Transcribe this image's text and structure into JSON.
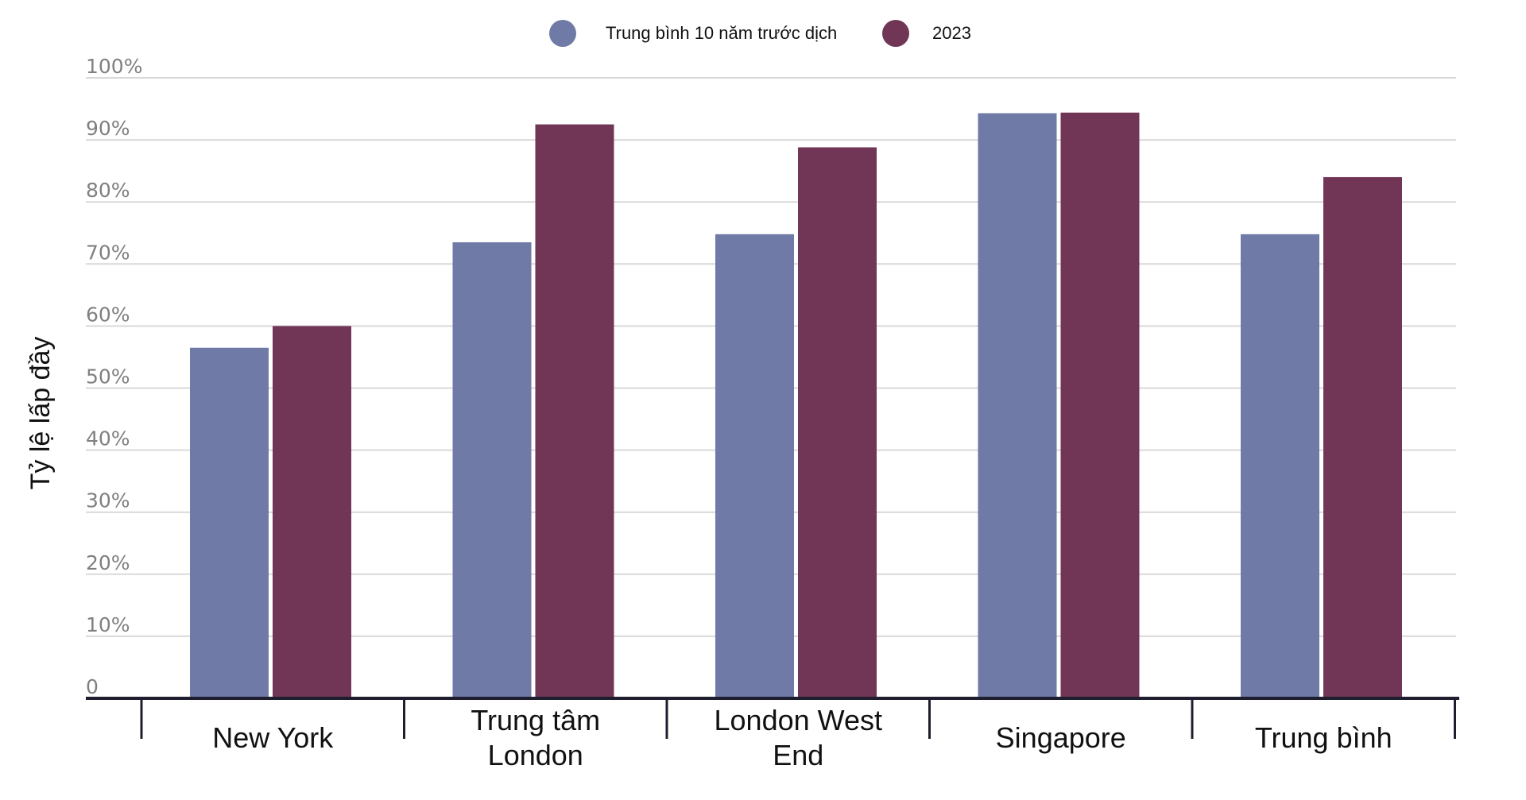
{
  "chart_data": {
    "type": "bar",
    "categories": [
      [
        "New York"
      ],
      [
        "Trung tâm",
        "London"
      ],
      [
        "London West",
        "End"
      ],
      [
        "Singapore"
      ],
      [
        "Trung bình"
      ]
    ],
    "series": [
      {
        "name": "Trung bình 10 năm trước dịch",
        "color": "#6f7aa6",
        "values": [
          56.5,
          73.5,
          74.8,
          94.3,
          74.8
        ]
      },
      {
        "name": "2023",
        "color": "#713656",
        "values": [
          60.0,
          92.5,
          88.8,
          94.4,
          84.0
        ]
      }
    ],
    "ylabel": "Tỷ lệ lấp đầy",
    "ylim": [
      0,
      100
    ],
    "yticks": [
      "0",
      "10%",
      "20%",
      "30%",
      "40%",
      "50%",
      "60%",
      "70%",
      "80%",
      "90%",
      "100%"
    ],
    "grid": true,
    "legend_position": "top-center"
  }
}
